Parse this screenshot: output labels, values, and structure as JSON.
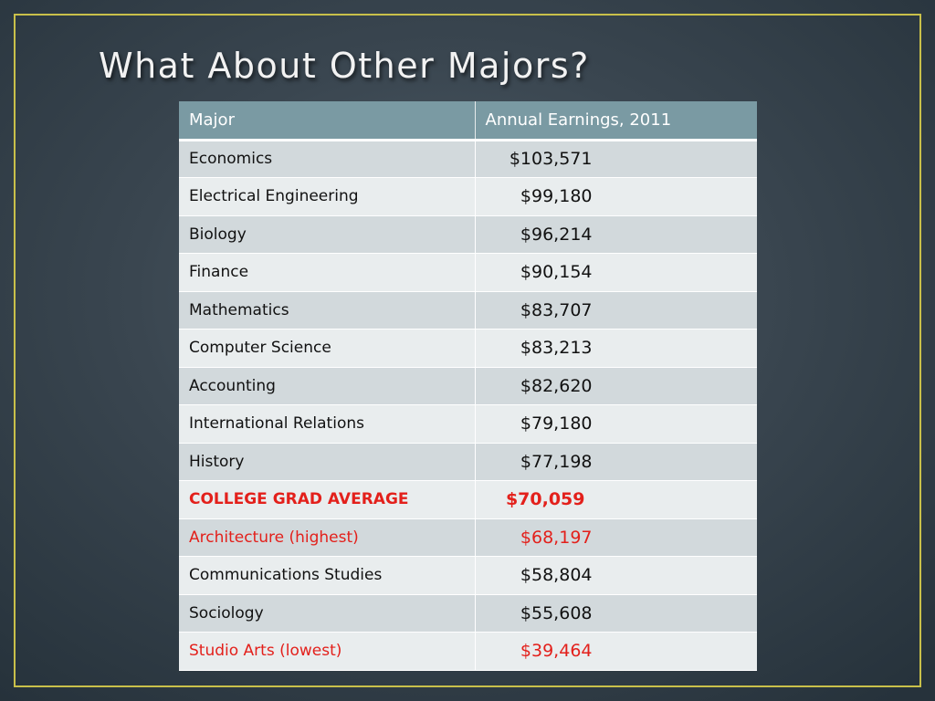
{
  "slide": {
    "title": "What About Other Majors?"
  },
  "table": {
    "headers": [
      "Major",
      "Annual Earnings, 2011"
    ],
    "rows": [
      {
        "major": "Economics",
        "earnings": "$103,571"
      },
      {
        "major": "Electrical Engineering",
        "earnings": "$99,180"
      },
      {
        "major": "Biology",
        "earnings": "$96,214"
      },
      {
        "major": "Finance",
        "earnings": "$90,154"
      },
      {
        "major": "Mathematics",
        "earnings": "$83,707"
      },
      {
        "major": "Computer Science",
        "earnings": "$83,213"
      },
      {
        "major": "Accounting",
        "earnings": "$82,620"
      },
      {
        "major": "International Relations",
        "earnings": "$79,180"
      },
      {
        "major": "History",
        "earnings": "$77,198"
      },
      {
        "major": "COLLEGE GRAD AVERAGE",
        "earnings": "$70,059"
      },
      {
        "major": "Architecture (highest)",
        "earnings": "$68,197"
      },
      {
        "major": "Communications Studies",
        "earnings": "$58,804"
      },
      {
        "major": "Sociology",
        "earnings": "$55,608"
      },
      {
        "major": "Studio Arts (lowest)",
        "earnings": "$39,464"
      }
    ]
  },
  "colors": {
    "header_bg": "#7a9aa3",
    "row_odd": "#d2d9dc",
    "row_even": "#e9edee",
    "highlight_red": "#e3201b",
    "frame": "#c9c04a"
  }
}
